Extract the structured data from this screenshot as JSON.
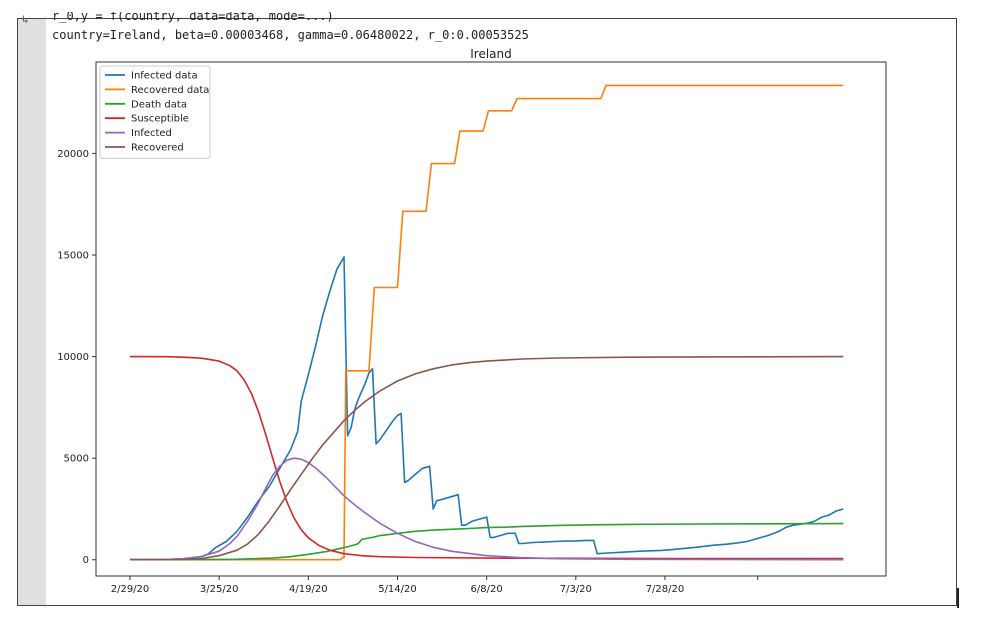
{
  "output": {
    "partial_line": "r_0,y = f(country, data=data, mode=...)",
    "param_line": "country=Ireland, beta=0.00003468, gamma=0.06480022, r_0:0.00053525"
  },
  "chart_data": {
    "type": "line",
    "title": "Ireland",
    "xlabel": "",
    "ylabel": "",
    "x_start": "2/29/20",
    "x_ticks": [
      "2/29/20",
      "3/25/20",
      "4/19/20",
      "5/14/20",
      "6/8/20",
      "7/3/20",
      "7/28/20",
      ""
    ],
    "ylim": [
      -800,
      24500
    ],
    "y_ticks": [
      0,
      5000,
      10000,
      15000,
      20000
    ],
    "legend_position": "top-left",
    "grid": false,
    "series": [
      {
        "name": "Infected data",
        "color": "#1f77b4",
        "points": [
          [
            0,
            0
          ],
          [
            10,
            10
          ],
          [
            15,
            50
          ],
          [
            20,
            150
          ],
          [
            22,
            300
          ],
          [
            24,
            600
          ],
          [
            27,
            900
          ],
          [
            30,
            1400
          ],
          [
            33,
            2100
          ],
          [
            36,
            2900
          ],
          [
            39,
            3600
          ],
          [
            42,
            4500
          ],
          [
            45,
            5400
          ],
          [
            47,
            6300
          ],
          [
            48,
            7800
          ],
          [
            50,
            9100
          ],
          [
            52,
            10500
          ],
          [
            54,
            12000
          ],
          [
            56,
            13200
          ],
          [
            58,
            14300
          ],
          [
            60,
            14900
          ],
          [
            61,
            6100
          ],
          [
            62,
            6500
          ],
          [
            63,
            7400
          ],
          [
            64,
            7900
          ],
          [
            65,
            8300
          ],
          [
            66,
            8700
          ],
          [
            67,
            9200
          ],
          [
            68,
            9400
          ],
          [
            69,
            5700
          ],
          [
            70,
            5900
          ],
          [
            72,
            6400
          ],
          [
            74,
            6900
          ],
          [
            75,
            7100
          ],
          [
            76,
            7200
          ],
          [
            77,
            3800
          ],
          [
            78,
            3900
          ],
          [
            80,
            4200
          ],
          [
            82,
            4500
          ],
          [
            84,
            4600
          ],
          [
            85,
            2500
          ],
          [
            86,
            2900
          ],
          [
            88,
            3000
          ],
          [
            90,
            3100
          ],
          [
            92,
            3200
          ],
          [
            93,
            1700
          ],
          [
            94,
            1700
          ],
          [
            96,
            1900
          ],
          [
            98,
            2000
          ],
          [
            100,
            2100
          ],
          [
            101,
            1100
          ],
          [
            102,
            1100
          ],
          [
            104,
            1200
          ],
          [
            106,
            1300
          ],
          [
            108,
            1300
          ],
          [
            109,
            800
          ],
          [
            110,
            800
          ],
          [
            113,
            850
          ],
          [
            116,
            870
          ],
          [
            119,
            900
          ],
          [
            122,
            920
          ],
          [
            125,
            930
          ],
          [
            128,
            950
          ],
          [
            130,
            950
          ],
          [
            131,
            300
          ],
          [
            134,
            330
          ],
          [
            137,
            360
          ],
          [
            140,
            390
          ],
          [
            143,
            420
          ],
          [
            146,
            440
          ],
          [
            149,
            460
          ],
          [
            152,
            500
          ],
          [
            155,
            550
          ],
          [
            158,
            600
          ],
          [
            161,
            660
          ],
          [
            164,
            720
          ],
          [
            167,
            760
          ],
          [
            170,
            820
          ],
          [
            173,
            900
          ],
          [
            176,
            1050
          ],
          [
            179,
            1200
          ],
          [
            182,
            1400
          ],
          [
            184,
            1600
          ],
          [
            186,
            1700
          ],
          [
            188,
            1750
          ],
          [
            190,
            1800
          ],
          [
            192,
            1900
          ],
          [
            194,
            2100
          ],
          [
            196,
            2200
          ],
          [
            198,
            2400
          ],
          [
            200,
            2500
          ]
        ]
      },
      {
        "name": "Recovered data",
        "color": "#ff7f0e",
        "points": [
          [
            0,
            0
          ],
          [
            59,
            0
          ],
          [
            59.5,
            100
          ],
          [
            60,
            100
          ],
          [
            60.5,
            9300
          ],
          [
            67,
            9300
          ],
          [
            68.5,
            13400
          ],
          [
            75,
            13400
          ],
          [
            76.5,
            17150
          ],
          [
            83,
            17150
          ],
          [
            84.5,
            19500
          ],
          [
            91,
            19500
          ],
          [
            92.5,
            21100
          ],
          [
            99,
            21100
          ],
          [
            100.5,
            22100
          ],
          [
            107,
            22100
          ],
          [
            108.5,
            22700
          ],
          [
            132,
            22700
          ],
          [
            133.5,
            23350
          ],
          [
            200,
            23350
          ]
        ]
      },
      {
        "name": "Death data",
        "color": "#2ca02c",
        "points": [
          [
            0,
            0
          ],
          [
            20,
            5
          ],
          [
            30,
            20
          ],
          [
            40,
            80
          ],
          [
            45,
            150
          ],
          [
            50,
            270
          ],
          [
            55,
            400
          ],
          [
            58,
            520
          ],
          [
            60,
            600
          ],
          [
            63,
            730
          ],
          [
            64,
            800
          ],
          [
            65,
            1000
          ],
          [
            68,
            1100
          ],
          [
            70,
            1190
          ],
          [
            72,
            1230
          ],
          [
            75,
            1300
          ],
          [
            80,
            1400
          ],
          [
            85,
            1460
          ],
          [
            90,
            1500
          ],
          [
            95,
            1540
          ],
          [
            100,
            1580
          ],
          [
            105,
            1600
          ],
          [
            110,
            1640
          ],
          [
            120,
            1690
          ],
          [
            130,
            1720
          ],
          [
            140,
            1740
          ],
          [
            160,
            1760
          ],
          [
            180,
            1770
          ],
          [
            200,
            1780
          ]
        ]
      },
      {
        "name": "Susceptible",
        "color": "#d62728",
        "points": [
          [
            0,
            10000
          ],
          [
            10,
            9995
          ],
          [
            15,
            9970
          ],
          [
            20,
            9920
          ],
          [
            25,
            9780
          ],
          [
            28,
            9550
          ],
          [
            30,
            9300
          ],
          [
            32,
            8850
          ],
          [
            34,
            8200
          ],
          [
            36,
            7300
          ],
          [
            38,
            6200
          ],
          [
            40,
            5000
          ],
          [
            42,
            3850
          ],
          [
            44,
            2850
          ],
          [
            46,
            2050
          ],
          [
            48,
            1480
          ],
          [
            50,
            1080
          ],
          [
            53,
            700
          ],
          [
            56,
            470
          ],
          [
            60,
            300
          ],
          [
            65,
            200
          ],
          [
            70,
            150
          ],
          [
            80,
            110
          ],
          [
            100,
            80
          ],
          [
            150,
            60
          ],
          [
            200,
            60
          ]
        ]
      },
      {
        "name": "Infected",
        "color": "#9467bd",
        "points": [
          [
            0,
            0
          ],
          [
            10,
            10
          ],
          [
            15,
            50
          ],
          [
            20,
            160
          ],
          [
            25,
            420
          ],
          [
            28,
            800
          ],
          [
            30,
            1150
          ],
          [
            33,
            1900
          ],
          [
            36,
            2800
          ],
          [
            38,
            3500
          ],
          [
            40,
            4150
          ],
          [
            42,
            4600
          ],
          [
            44,
            4900
          ],
          [
            46,
            5000
          ],
          [
            48,
            4950
          ],
          [
            50,
            4780
          ],
          [
            52,
            4520
          ],
          [
            55,
            4050
          ],
          [
            58,
            3500
          ],
          [
            60,
            3150
          ],
          [
            63,
            2700
          ],
          [
            66,
            2300
          ],
          [
            70,
            1800
          ],
          [
            75,
            1300
          ],
          [
            80,
            900
          ],
          [
            85,
            620
          ],
          [
            90,
            420
          ],
          [
            100,
            200
          ],
          [
            110,
            100
          ],
          [
            120,
            50
          ],
          [
            140,
            20
          ],
          [
            160,
            10
          ],
          [
            200,
            0
          ]
        ]
      },
      {
        "name": "Recovered",
        "color": "#8c564b",
        "points": [
          [
            0,
            0
          ],
          [
            15,
            10
          ],
          [
            20,
            60
          ],
          [
            25,
            200
          ],
          [
            30,
            470
          ],
          [
            33,
            780
          ],
          [
            36,
            1250
          ],
          [
            39,
            1900
          ],
          [
            42,
            2650
          ],
          [
            45,
            3450
          ],
          [
            48,
            4200
          ],
          [
            51,
            4950
          ],
          [
            54,
            5650
          ],
          [
            57,
            6250
          ],
          [
            60,
            6850
          ],
          [
            63,
            7350
          ],
          [
            66,
            7800
          ],
          [
            70,
            8300
          ],
          [
            75,
            8800
          ],
          [
            80,
            9150
          ],
          [
            85,
            9400
          ],
          [
            90,
            9580
          ],
          [
            95,
            9700
          ],
          [
            100,
            9780
          ],
          [
            110,
            9880
          ],
          [
            120,
            9930
          ],
          [
            140,
            9970
          ],
          [
            160,
            9985
          ],
          [
            200,
            10000
          ]
        ]
      }
    ]
  }
}
